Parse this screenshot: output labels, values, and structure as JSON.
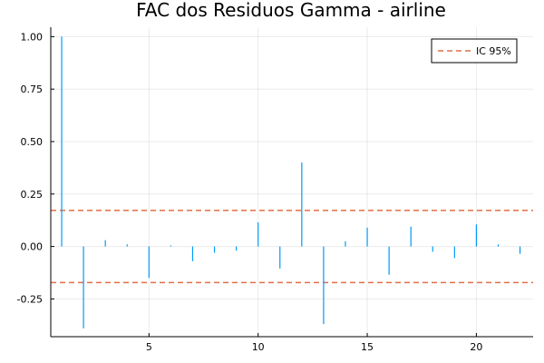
{
  "chart_data": {
    "type": "bar",
    "title": "FAC dos Residuos  Gamma - airline",
    "xlabel": "",
    "ylabel": "",
    "x": [
      1,
      2,
      3,
      4,
      5,
      6,
      7,
      8,
      9,
      10,
      11,
      12,
      13,
      14,
      15,
      16,
      17,
      18,
      19,
      20,
      21,
      22
    ],
    "values": [
      1.0,
      -0.39,
      0.03,
      0.01,
      -0.15,
      0.005,
      -0.07,
      -0.03,
      -0.02,
      0.115,
      -0.105,
      0.4,
      -0.37,
      0.025,
      0.09,
      -0.135,
      0.095,
      -0.025,
      -0.055,
      0.105,
      0.01,
      -0.035
    ],
    "xlim": [
      0.5,
      22.6
    ],
    "ylim": [
      -0.43,
      1.045
    ],
    "xticks": [
      5,
      10,
      15,
      20
    ],
    "yticks": [
      -0.25,
      0.0,
      0.25,
      0.5,
      0.75,
      1.0
    ],
    "xtick_labels": [
      "5",
      "10",
      "15",
      "20"
    ],
    "ytick_labels": [
      "-0.25",
      "0.00",
      "0.25",
      "0.50",
      "0.75",
      "1.00"
    ],
    "confidence_bands": [
      0.172,
      -0.172
    ],
    "legend": {
      "label": "IC 95%",
      "placement": "top-right"
    },
    "grid": true,
    "colors": {
      "bars": "#009af9",
      "bands": "#e26f46"
    }
  }
}
